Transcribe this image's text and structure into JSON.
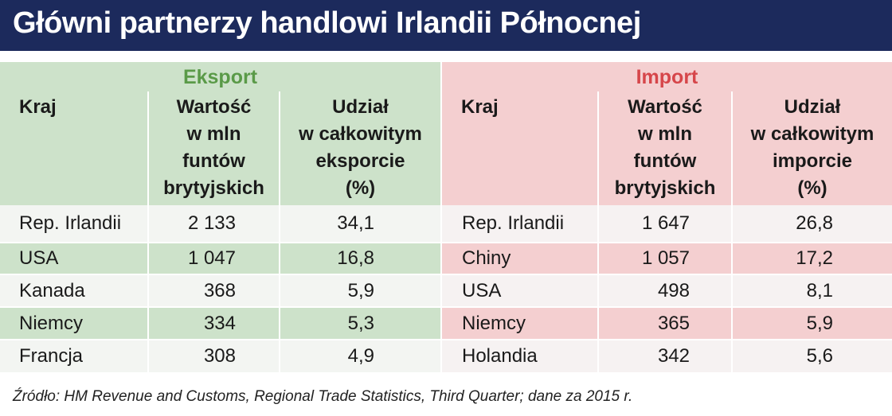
{
  "title": "Główni partnerzy handlowi Irlandii Północnej",
  "export": {
    "label": "Eksport",
    "columns": [
      "Kraj",
      "Wartość\nw mln\nfuntów\nbrytyjskich",
      "Udział\nw całkowitym\neksporcie\n(%)"
    ],
    "rows": [
      [
        "Rep. Irlandii",
        "2 133",
        "34,1"
      ],
      [
        "USA",
        "1 047",
        "16,8"
      ],
      [
        "Kanada",
        "368",
        "5,9"
      ],
      [
        "Niemcy",
        "334",
        "5,3"
      ],
      [
        "Francja",
        "308",
        "4,9"
      ]
    ]
  },
  "import": {
    "label": "Import",
    "columns": [
      "Kraj",
      "Wartość\nw mln\nfuntów\nbrytyjskich",
      "Udział\nw całkowitym\nimporcie\n(%)"
    ],
    "rows": [
      [
        "Rep. Irlandii",
        "1 647",
        "26,8"
      ],
      [
        "Chiny",
        "1 057",
        "17,2"
      ],
      [
        "USA",
        "498",
        "8,1"
      ],
      [
        "Niemcy",
        "365",
        "5,9"
      ],
      [
        "Holandia",
        "342",
        "5,6"
      ]
    ]
  },
  "source": "Źródło: HM Revenue and Customs, Regional Trade Statistics, Third Quarter; dane za 2015 r."
}
